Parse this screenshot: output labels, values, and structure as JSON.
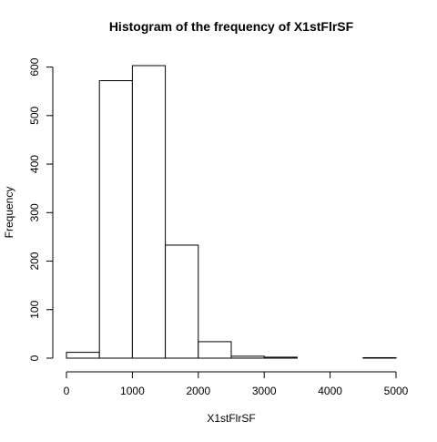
{
  "chart_data": {
    "type": "bar",
    "title": "Histogram of the frequency of X1stFlrSF",
    "xlabel": "X1stFlrSF",
    "ylabel": "Frequency",
    "bins": [
      {
        "start": 0,
        "end": 500,
        "count": 12
      },
      {
        "start": 500,
        "end": 1000,
        "count": 572
      },
      {
        "start": 1000,
        "end": 1500,
        "count": 603
      },
      {
        "start": 1500,
        "end": 2000,
        "count": 233
      },
      {
        "start": 2000,
        "end": 2500,
        "count": 34
      },
      {
        "start": 2500,
        "end": 3000,
        "count": 4
      },
      {
        "start": 3000,
        "end": 3500,
        "count": 2
      },
      {
        "start": 3500,
        "end": 4000,
        "count": 0
      },
      {
        "start": 4000,
        "end": 4500,
        "count": 0
      },
      {
        "start": 4500,
        "end": 5000,
        "count": 1
      }
    ],
    "x_ticks": [
      "0",
      "1000",
      "2000",
      "3000",
      "4000",
      "5000"
    ],
    "y_ticks": [
      "0",
      "100",
      "200",
      "300",
      "400",
      "500",
      "600"
    ],
    "xlim": [
      0,
      5000
    ],
    "ylim": [
      0,
      603
    ],
    "grid": false,
    "bar_fill": "#ffffff",
    "bar_stroke": "#000000"
  }
}
